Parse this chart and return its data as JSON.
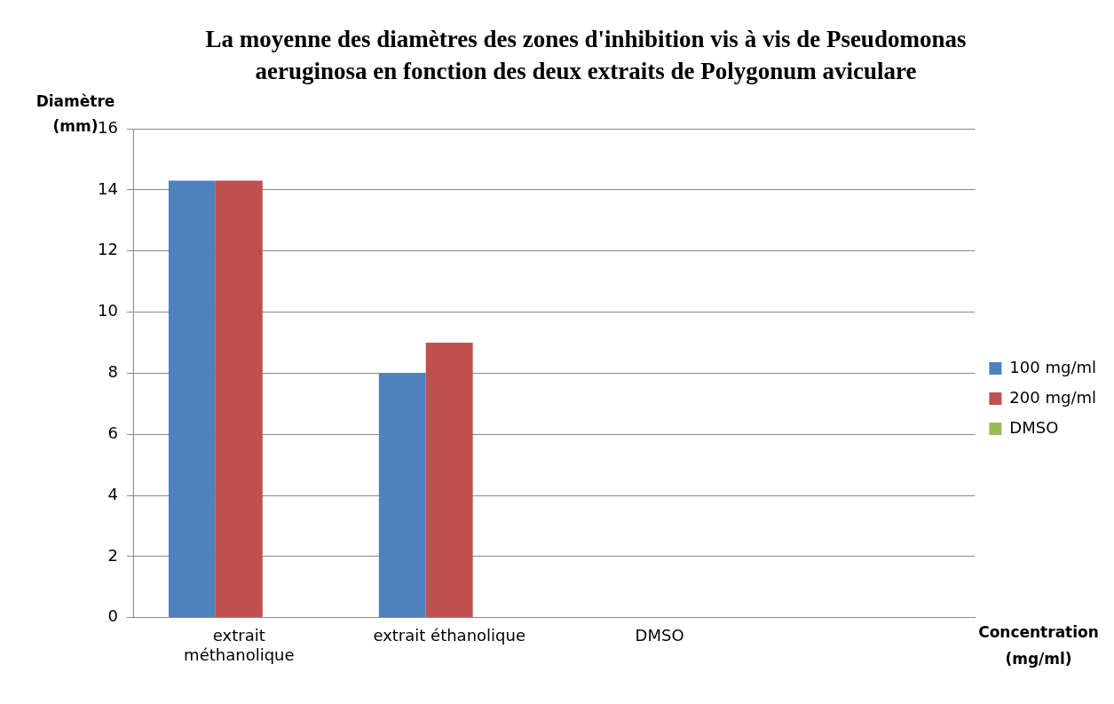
{
  "chart_data": {
    "type": "bar",
    "title": "La moyenne des diamètres des zones d'inhibition vis à vis de Pseudomonas aeruginosa en fonction des deux extraits de Polygonum aviculare",
    "xlabel": "Concentration (mg/ml)",
    "ylabel": "Diamètre (mm)",
    "categories": [
      "extrait méthanolique",
      "extrait éthanolique",
      "DMSO",
      null
    ],
    "series": [
      {
        "name": "100 mg/ml",
        "color": "#4f81bd",
        "values": [
          14.3,
          8,
          0,
          null
        ]
      },
      {
        "name": "200 mg/ml",
        "color": "#c0504d",
        "values": [
          14.3,
          9,
          0,
          null
        ]
      },
      {
        "name": "DMSO",
        "color": "#9bbb59",
        "values": [
          null,
          null,
          0,
          null
        ]
      }
    ],
    "ylim": [
      0,
      16
    ],
    "yticks": [
      0,
      2,
      4,
      6,
      8,
      10,
      12,
      14,
      16
    ],
    "grid": "y",
    "legend": "right"
  }
}
